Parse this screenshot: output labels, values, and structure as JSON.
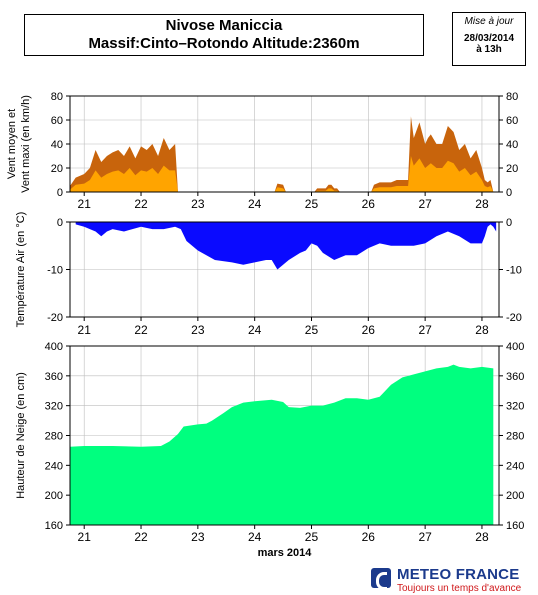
{
  "header": {
    "title_line1": "Nivose Maniccia",
    "title_line2": "Massif:Cinto–Rotondo Altitude:2360m"
  },
  "update": {
    "label": "Mise à jour",
    "date": "28/03/2014",
    "time": "à 13h"
  },
  "brand": {
    "name": "METEO FRANCE",
    "slogan": "Toujours un temps d'avance",
    "color": "#1b3a8c",
    "slogan_color": "#d0181b"
  },
  "chart_data": [
    {
      "type": "area",
      "ylabel_line1": "Vent moyen et",
      "ylabel_line2": "Vent maxi (en km/h)",
      "xlim": [
        20.75,
        28.3
      ],
      "ylim": [
        0,
        80
      ],
      "yticks": [
        0,
        20,
        40,
        60,
        80
      ],
      "xticks": [
        21,
        22,
        23,
        24,
        25,
        26,
        27,
        28
      ],
      "grid": true,
      "series": [
        {
          "role": "max",
          "color": "#c8640c",
          "x": [
            20.75,
            20.85,
            21.0,
            21.1,
            21.2,
            21.3,
            21.4,
            21.5,
            21.6,
            21.7,
            21.8,
            21.9,
            22.0,
            22.1,
            22.2,
            22.3,
            22.4,
            22.5,
            22.6,
            22.65,
            24.35,
            24.4,
            24.5,
            24.55,
            25.05,
            25.1,
            25.25,
            25.3,
            25.35,
            25.4,
            25.45,
            25.5,
            26.05,
            26.1,
            26.2,
            26.3,
            26.4,
            26.5,
            26.6,
            26.7,
            26.75,
            26.8,
            26.9,
            27.0,
            27.05,
            27.1,
            27.2,
            27.3,
            27.4,
            27.5,
            27.6,
            27.7,
            27.8,
            27.9,
            28.0,
            28.05,
            28.1,
            28.15,
            28.2
          ],
          "y": [
            5,
            12,
            15,
            20,
            35,
            25,
            30,
            33,
            35,
            30,
            38,
            28,
            38,
            35,
            40,
            30,
            45,
            35,
            40,
            0,
            0,
            7,
            6,
            0,
            0,
            3,
            3,
            6,
            6,
            3,
            3,
            0,
            0,
            6,
            8,
            8,
            8,
            10,
            10,
            10,
            63,
            45,
            58,
            40,
            45,
            48,
            40,
            40,
            55,
            50,
            35,
            40,
            28,
            35,
            20,
            10,
            8,
            10,
            0
          ]
        },
        {
          "role": "moyen",
          "color": "#ffa400",
          "x": [
            20.75,
            20.85,
            21.0,
            21.1,
            21.2,
            21.3,
            21.4,
            21.5,
            21.6,
            21.7,
            21.8,
            21.9,
            22.0,
            22.1,
            22.2,
            22.3,
            22.4,
            22.5,
            22.6,
            22.65,
            24.35,
            24.4,
            24.5,
            24.55,
            25.05,
            25.1,
            25.25,
            25.3,
            25.35,
            25.4,
            25.45,
            25.5,
            26.05,
            26.1,
            26.2,
            26.3,
            26.4,
            26.5,
            26.6,
            26.7,
            26.75,
            26.8,
            26.9,
            27.0,
            27.05,
            27.1,
            27.2,
            27.3,
            27.4,
            27.5,
            27.6,
            27.7,
            27.8,
            27.9,
            28.0,
            28.05,
            28.1,
            28.15,
            28.2
          ],
          "y": [
            2,
            6,
            7,
            10,
            18,
            12,
            15,
            17,
            18,
            15,
            20,
            14,
            18,
            17,
            20,
            15,
            22,
            18,
            18,
            0,
            0,
            4,
            3,
            0,
            0,
            1,
            1,
            3,
            3,
            1,
            1,
            0,
            0,
            3,
            4,
            4,
            4,
            5,
            5,
            5,
            30,
            22,
            28,
            20,
            22,
            24,
            20,
            20,
            26,
            24,
            17,
            20,
            14,
            17,
            10,
            5,
            4,
            5,
            0
          ]
        }
      ]
    },
    {
      "type": "area",
      "ylabel": "Température Air (en °C)",
      "xlim": [
        20.75,
        28.3
      ],
      "ylim": [
        -20,
        0
      ],
      "yticks": [
        -20,
        -10,
        0
      ],
      "xticks": [
        21,
        22,
        23,
        24,
        25,
        26,
        27,
        28
      ],
      "grid": true,
      "series": [
        {
          "role": "temperature",
          "color": "#0a0aff",
          "x": [
            20.85,
            21.0,
            21.2,
            21.3,
            21.4,
            21.5,
            21.7,
            22.0,
            22.2,
            22.4,
            22.6,
            22.7,
            22.8,
            23.0,
            23.3,
            23.6,
            23.8,
            24.0,
            24.2,
            24.3,
            24.4,
            24.6,
            24.8,
            24.9,
            25.0,
            25.1,
            25.2,
            25.4,
            25.6,
            25.8,
            26.0,
            26.2,
            26.4,
            26.6,
            26.8,
            27.0,
            27.2,
            27.4,
            27.6,
            27.8,
            28.0,
            28.05,
            28.1,
            28.15,
            28.2,
            28.25
          ],
          "y": [
            -0.5,
            -1,
            -2,
            -3,
            -2,
            -1.5,
            -2,
            -1,
            -1.5,
            -1.5,
            -1,
            -1.5,
            -4,
            -6,
            -8,
            -8.5,
            -9,
            -8.5,
            -8,
            -8,
            -10,
            -8,
            -6.5,
            -6,
            -4.5,
            -5,
            -6.5,
            -8,
            -7,
            -7,
            -5.5,
            -4.5,
            -5,
            -5,
            -5,
            -4.5,
            -3,
            -2,
            -3,
            -4.5,
            -4.5,
            -3,
            -1,
            -0.5,
            -1,
            -2
          ]
        }
      ]
    },
    {
      "type": "area",
      "ylabel": "Hauteur de Neige (en cm)",
      "xlabel": "mars 2014",
      "xlim": [
        20.75,
        28.3
      ],
      "ylim": [
        160,
        400
      ],
      "yticks": [
        160,
        200,
        240,
        280,
        320,
        360,
        400
      ],
      "xticks": [
        21,
        22,
        23,
        24,
        25,
        26,
        27,
        28
      ],
      "grid": true,
      "series": [
        {
          "role": "snow_depth",
          "color": "#00ff7f",
          "x": [
            20.75,
            21.0,
            21.5,
            22.0,
            22.35,
            22.5,
            22.65,
            22.75,
            23.0,
            23.15,
            23.25,
            23.45,
            23.6,
            23.8,
            24.0,
            24.3,
            24.5,
            24.6,
            24.8,
            25.0,
            25.2,
            25.4,
            25.6,
            25.8,
            26.0,
            26.2,
            26.4,
            26.6,
            26.8,
            27.0,
            27.2,
            27.4,
            27.5,
            27.6,
            27.8,
            28.0,
            28.2
          ],
          "y": [
            265,
            266,
            266,
            265,
            266,
            272,
            282,
            292,
            295,
            296,
            300,
            310,
            318,
            324,
            326,
            328,
            325,
            318,
            317,
            320,
            320,
            324,
            330,
            330,
            328,
            332,
            348,
            358,
            362,
            366,
            370,
            372,
            375,
            372,
            370,
            372,
            370
          ]
        }
      ]
    }
  ]
}
